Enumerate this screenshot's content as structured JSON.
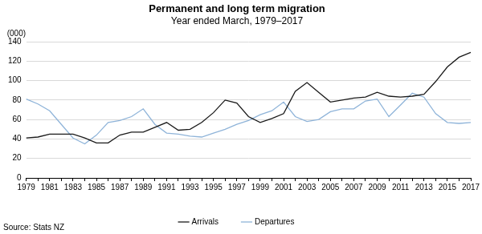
{
  "chart_data": {
    "type": "line",
    "title": "Permanent and long term migration",
    "subtitle": "Year ended March, 1979–2017",
    "y_label": "(000)",
    "source": "Source: Stats NZ",
    "categories": [
      "1979",
      null,
      "1981",
      null,
      "1983",
      null,
      "1985",
      null,
      "1987",
      null,
      "1989",
      null,
      "1991",
      null,
      "1993",
      null,
      "1995",
      null,
      "1997",
      null,
      "1999",
      null,
      "2001",
      null,
      "2003",
      null,
      "2005",
      null,
      "2007",
      null,
      "2009",
      null,
      "2011",
      null,
      "2013",
      null,
      "2015",
      null,
      "2017"
    ],
    "series": [
      {
        "name": "Arrivals",
        "color": "#1a1a1a",
        "values": [
          41,
          42,
          45,
          45,
          45,
          41,
          36,
          36,
          44,
          47,
          47,
          52,
          57,
          49,
          50,
          57,
          67,
          80,
          77,
          63,
          57,
          61,
          66,
          89,
          98,
          88,
          78,
          80,
          82,
          83,
          88,
          84,
          83,
          84,
          86,
          99,
          114,
          124,
          129
        ]
      },
      {
        "name": "Departures",
        "color": "#8fb4d9",
        "values": [
          81,
          76,
          69,
          55,
          41,
          35,
          44,
          57,
          59,
          63,
          71,
          55,
          46,
          45,
          43,
          42,
          46,
          50,
          55,
          59,
          65,
          69,
          78,
          63,
          58,
          60,
          68,
          71,
          71,
          79,
          81,
          63,
          75,
          87,
          83,
          66,
          57,
          56,
          57
        ]
      }
    ],
    "ylim": [
      0,
      140
    ],
    "yticks": [
      0,
      20,
      40,
      60,
      80,
      100,
      120,
      140
    ],
    "grid": true,
    "legend": "bottom"
  }
}
